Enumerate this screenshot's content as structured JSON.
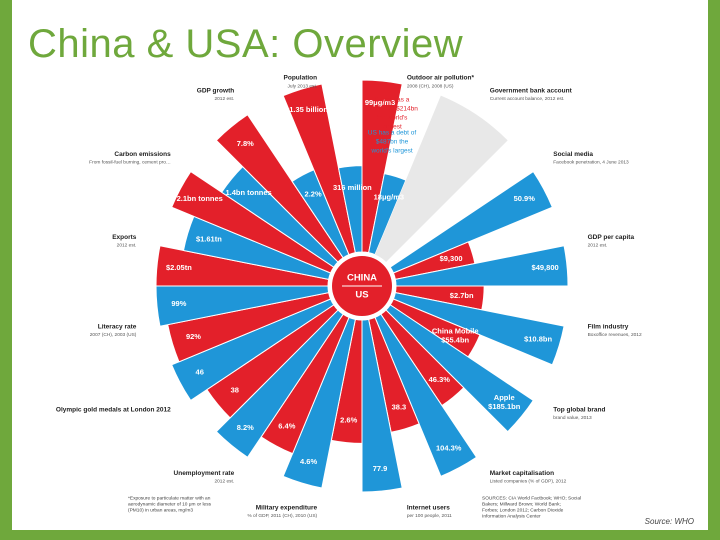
{
  "slide": {
    "title": "China & USA: Overview",
    "source": "Source: WHO"
  },
  "colors": {
    "china": "#e3202a",
    "usa": "#1f96d8",
    "band": "#e8e8e8",
    "center": "#e3202a"
  },
  "center": {
    "china": "CHINA",
    "us": "US"
  },
  "chart_data": {
    "type": "radial",
    "title": "",
    "sectors": [
      {
        "label": "Outdoor air pollution*",
        "sub": "2008 (CH), 2008 (US)",
        "china": "99μg/m3",
        "us": "18μg/m3",
        "china_value": 99,
        "us_value": 18
      },
      {
        "label": "Government bank account",
        "sub": "Current account balance, 2012 est.",
        "china": "China has a surplus of $214bn the world's largest",
        "us": "US has a debt of $487bn the world's largest",
        "china_value": 214,
        "us_value": -487
      },
      {
        "label": "Social media",
        "sub": "Facebook penetration, 4 June 2013",
        "china": "",
        "us": "50.9%",
        "us_value": 50.9
      },
      {
        "label": "GDP per capita",
        "sub": "2012 est.",
        "china": "$9,300",
        "us": "$49,800",
        "china_value": 9300,
        "us_value": 49800
      },
      {
        "label": "Film industry",
        "sub": "Boxoffice revenues, 2012",
        "china": "$2.7bn",
        "us": "$10.8bn",
        "china_value": 2.7,
        "us_value": 10.8
      },
      {
        "label": "Top global brand",
        "sub": "brand value, 2013",
        "china": "China Mobile $55.4bn",
        "us": "Apple $185.1bn",
        "china_value": 55.4,
        "us_value": 185.1
      },
      {
        "label": "Market capitalisation",
        "sub": "Listed companies (% of GDP), 2012",
        "china": "46.3%",
        "us": "104.3%",
        "china_value": 46.3,
        "us_value": 104.3
      },
      {
        "label": "Internet users",
        "sub": "per 100 people, 2011",
        "china": "38.3",
        "us": "77.9",
        "china_value": 38.3,
        "us_value": 77.9
      },
      {
        "label": "Military expenditure",
        "sub": "% of GDP, 2011 (CH), 2010 (US)",
        "china": "2.6%",
        "us": "4.6%",
        "china_value": 2.6,
        "us_value": 4.6
      },
      {
        "label": "Unemployment rate",
        "sub": "2012 est.",
        "china": "6.4%",
        "us": "8.2%",
        "china_value": 6.4,
        "us_value": 8.2
      },
      {
        "label": "Olympic gold medals at London 2012",
        "sub": "",
        "china": "38",
        "us": "46",
        "china_value": 38,
        "us_value": 46
      },
      {
        "label": "Literacy rate",
        "sub": "2007 (CH), 2003 (US)",
        "china": "92%",
        "us": "99%",
        "china_value": 92,
        "us_value": 99
      },
      {
        "label": "Exports",
        "sub": "2012 est.",
        "china": "$2.05tn",
        "us": "$1.61tn",
        "china_value": 2.05,
        "us_value": 1.61
      },
      {
        "label": "Carbon emissions",
        "sub": "From fossil-fuel burning, cement production and gas flaring, 2009",
        "china": "2.1bn tonnes",
        "us": "1.4bn tonnes",
        "china_value": 2.1,
        "us_value": 1.4
      },
      {
        "label": "GDP growth",
        "sub": "2012 est.",
        "china": "7.8%",
        "us": "2.2%",
        "china_value": 7.8,
        "us_value": 2.2
      },
      {
        "label": "Population",
        "sub": "July 2013 est.",
        "china": "1.35 billion",
        "us": "316 million",
        "china_value": 1.35,
        "us_value": 0.316
      }
    ],
    "footnotes": {
      "left": "*Exposure to particulate matter with an aerodynamic diameter of 10 μm or less (PM10) in urban areas, mg/m3",
      "right": "SOURCES: CIA World Factbook; WHO; Social Bakers; Millward Brown; World Bank; Forbes; London 2012; Carbon Dioxide Information Analysis Center"
    }
  }
}
